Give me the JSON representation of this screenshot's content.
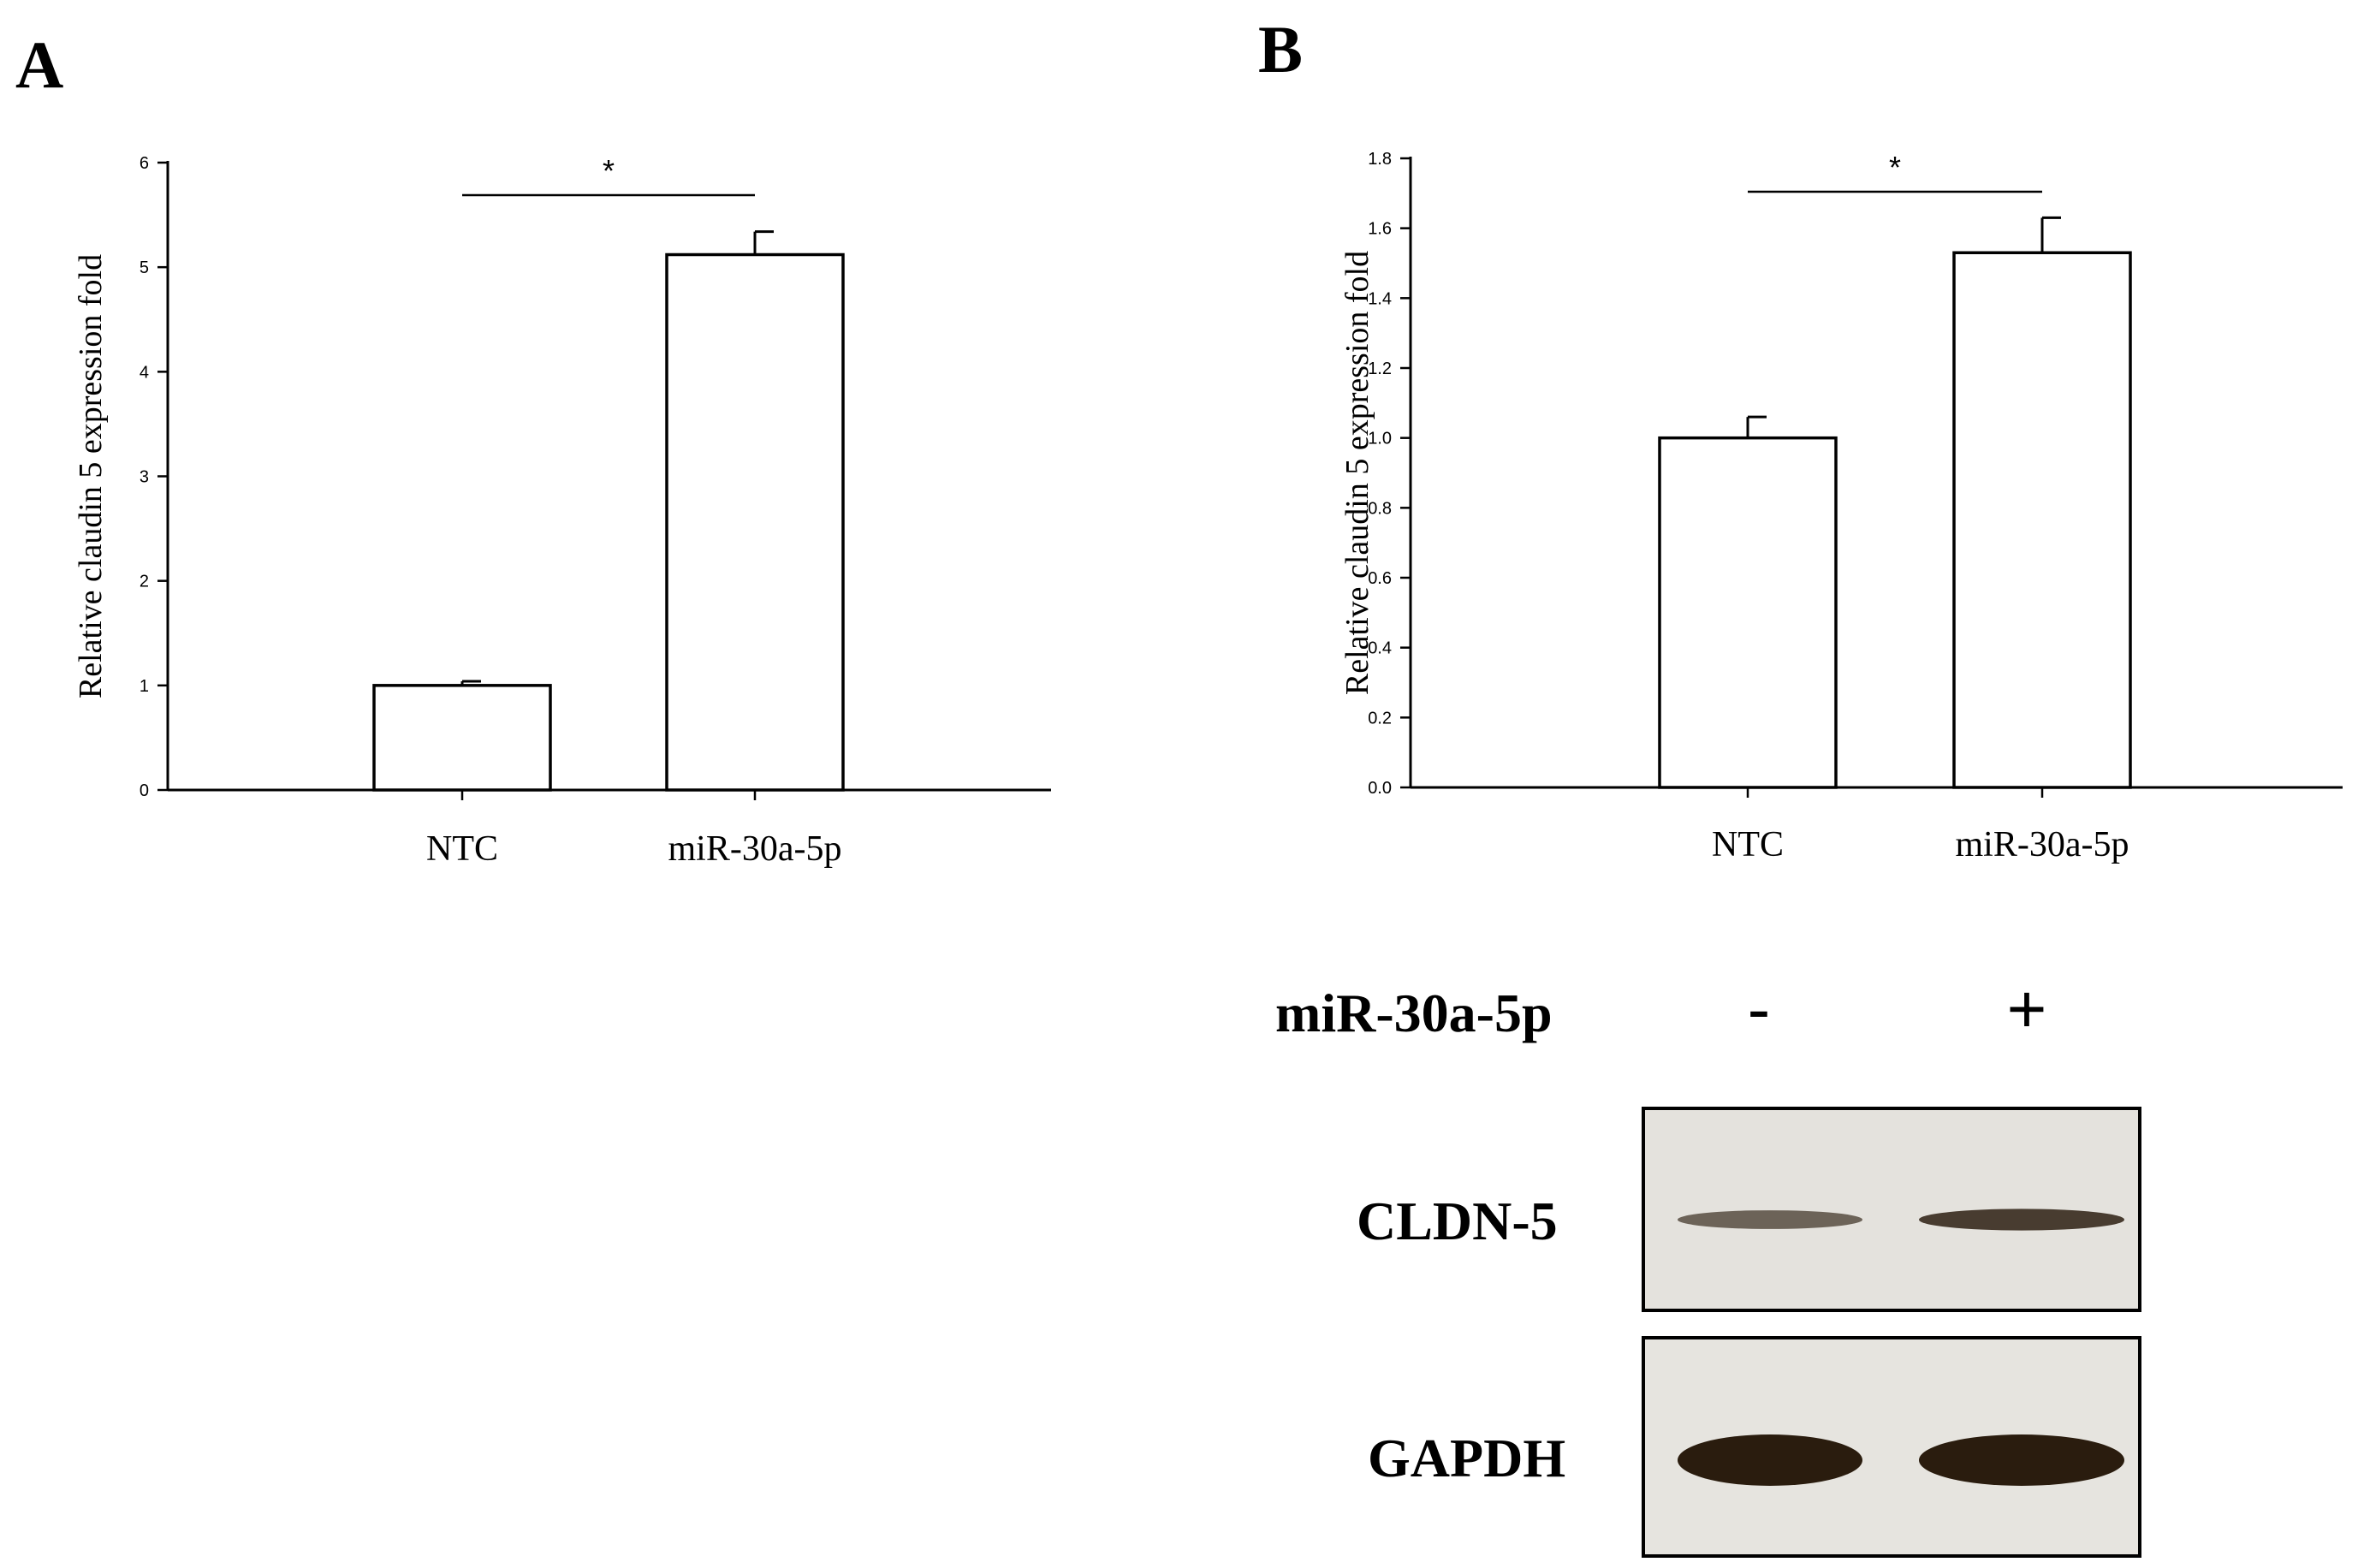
{
  "chart_data": [
    {
      "panel": "A",
      "type": "bar",
      "categories": [
        "NTC",
        "miR-30a-5p"
      ],
      "values": [
        1.0,
        5.12
      ],
      "errors": [
        0.04,
        0.22
      ],
      "ylabel": "Relative claudin 5 expression fold",
      "ylim": [
        0,
        6
      ],
      "yticks": [
        "0",
        "1",
        "2",
        "3",
        "4",
        "5",
        "6"
      ],
      "yticks_values": [
        0,
        1,
        2,
        3,
        4,
        5,
        6
      ],
      "significance": "*",
      "grid": false
    },
    {
      "panel": "B",
      "type": "bar",
      "categories": [
        "NTC",
        "miR-30a-5p"
      ],
      "values": [
        1.0,
        1.53
      ],
      "errors": [
        0.06,
        0.1
      ],
      "ylabel": "Relative claudin 5 expression fold",
      "ylim": [
        0,
        1.8
      ],
      "yticks": [
        "0.0",
        "0.2",
        "0.4",
        "0.6",
        "0.8",
        "1.0",
        "1.2",
        "1.4",
        "1.6",
        "1.8"
      ],
      "yticks_values": [
        0,
        0.2,
        0.4,
        0.6,
        0.8,
        1.0,
        1.2,
        1.4,
        1.6,
        1.8
      ],
      "significance": "*",
      "grid": false
    }
  ],
  "blot": {
    "treatment_label": "miR-30a-5p",
    "lanes": [
      "-",
      "+"
    ],
    "rows": [
      {
        "label": "CLDN-5",
        "intensities": [
          0.45,
          0.75
        ]
      },
      {
        "label": "GAPDH",
        "intensities": [
          1.0,
          1.0
        ]
      }
    ]
  },
  "colors": {
    "bar_fill": "#ffffff",
    "stroke": "#000000",
    "band": "#2a1c0e",
    "membrane": "#e4e2dd"
  }
}
